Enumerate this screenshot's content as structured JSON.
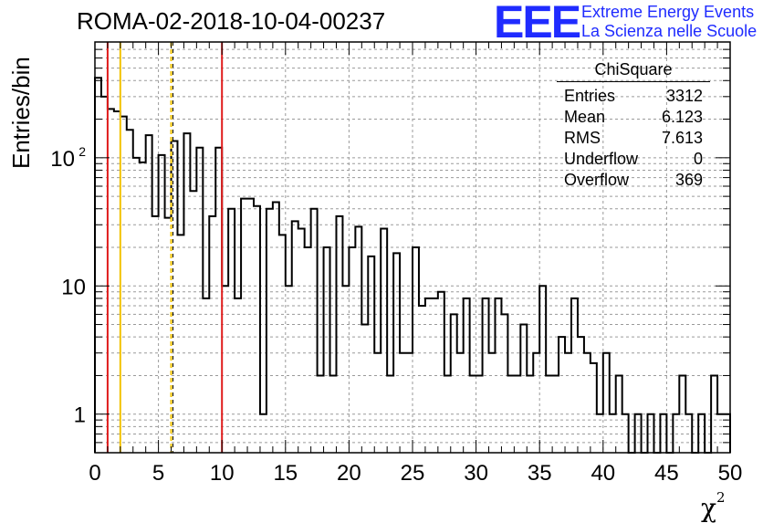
{
  "page": {
    "title": "ROMA-02-2018-10-04-00237",
    "logo_text": "EEE",
    "logo_line1": "Extreme Energy Events",
    "logo_line2": "La Scienza nelle Scuole"
  },
  "stats": {
    "name": "ChiSquare",
    "rows": [
      {
        "label": "Entries",
        "value": "3312"
      },
      {
        "label": "Mean",
        "value": "6.123"
      },
      {
        "label": "RMS",
        "value": "7.613"
      },
      {
        "label": "Underflow",
        "value": "0"
      },
      {
        "label": "Overflow",
        "value": "369"
      }
    ]
  },
  "chart_data": {
    "type": "histogram",
    "title": "ROMA-02-2018-10-04-00237",
    "xlabel": "χ",
    "xlabel_sup": "2",
    "ylabel": "Entries/bin",
    "yscale": "log",
    "xlim": [
      0,
      50
    ],
    "ylim": [
      0.5,
      800
    ],
    "bin_width": 0.5,
    "grid": true,
    "xticks": [
      0,
      5,
      10,
      15,
      20,
      25,
      30,
      35,
      40,
      45,
      50
    ],
    "yticks": [
      {
        "value": 1,
        "label": "1"
      },
      {
        "value": 10,
        "label": "10"
      },
      {
        "value": 100,
        "label": "10",
        "sup": "2"
      }
    ],
    "values": [
      420,
      300,
      240,
      230,
      210,
      165,
      100,
      92,
      150,
      35,
      105,
      34,
      135,
      25,
      155,
      55,
      120,
      8,
      35,
      120,
      10,
      40,
      8,
      48,
      48,
      42,
      1,
      40,
      45,
      25,
      10,
      32,
      28,
      20,
      40,
      2,
      20,
      2,
      35,
      10,
      20,
      29,
      5,
      17,
      3,
      28,
      2,
      18,
      3,
      3,
      20,
      7,
      8,
      8,
      9,
      2,
      6,
      3,
      8,
      2,
      2,
      8,
      3,
      8,
      6,
      2,
      2,
      5,
      2,
      3,
      10,
      2,
      2,
      4,
      3,
      8,
      4,
      3,
      2.5,
      1,
      3,
      1,
      2,
      1,
      0,
      1,
      0,
      1,
      0,
      1,
      0,
      1,
      2,
      1,
      0,
      1,
      0,
      2,
      1,
      1
    ],
    "vlines": [
      {
        "x": 1,
        "color": "#e01c1c",
        "style": "solid"
      },
      {
        "x": 2,
        "color": "#f2c200",
        "style": "solid"
      },
      {
        "x": 6,
        "color": "#f2c200",
        "style": "dashed"
      },
      {
        "x": 10,
        "color": "#e01c1c",
        "style": "solid"
      }
    ]
  }
}
